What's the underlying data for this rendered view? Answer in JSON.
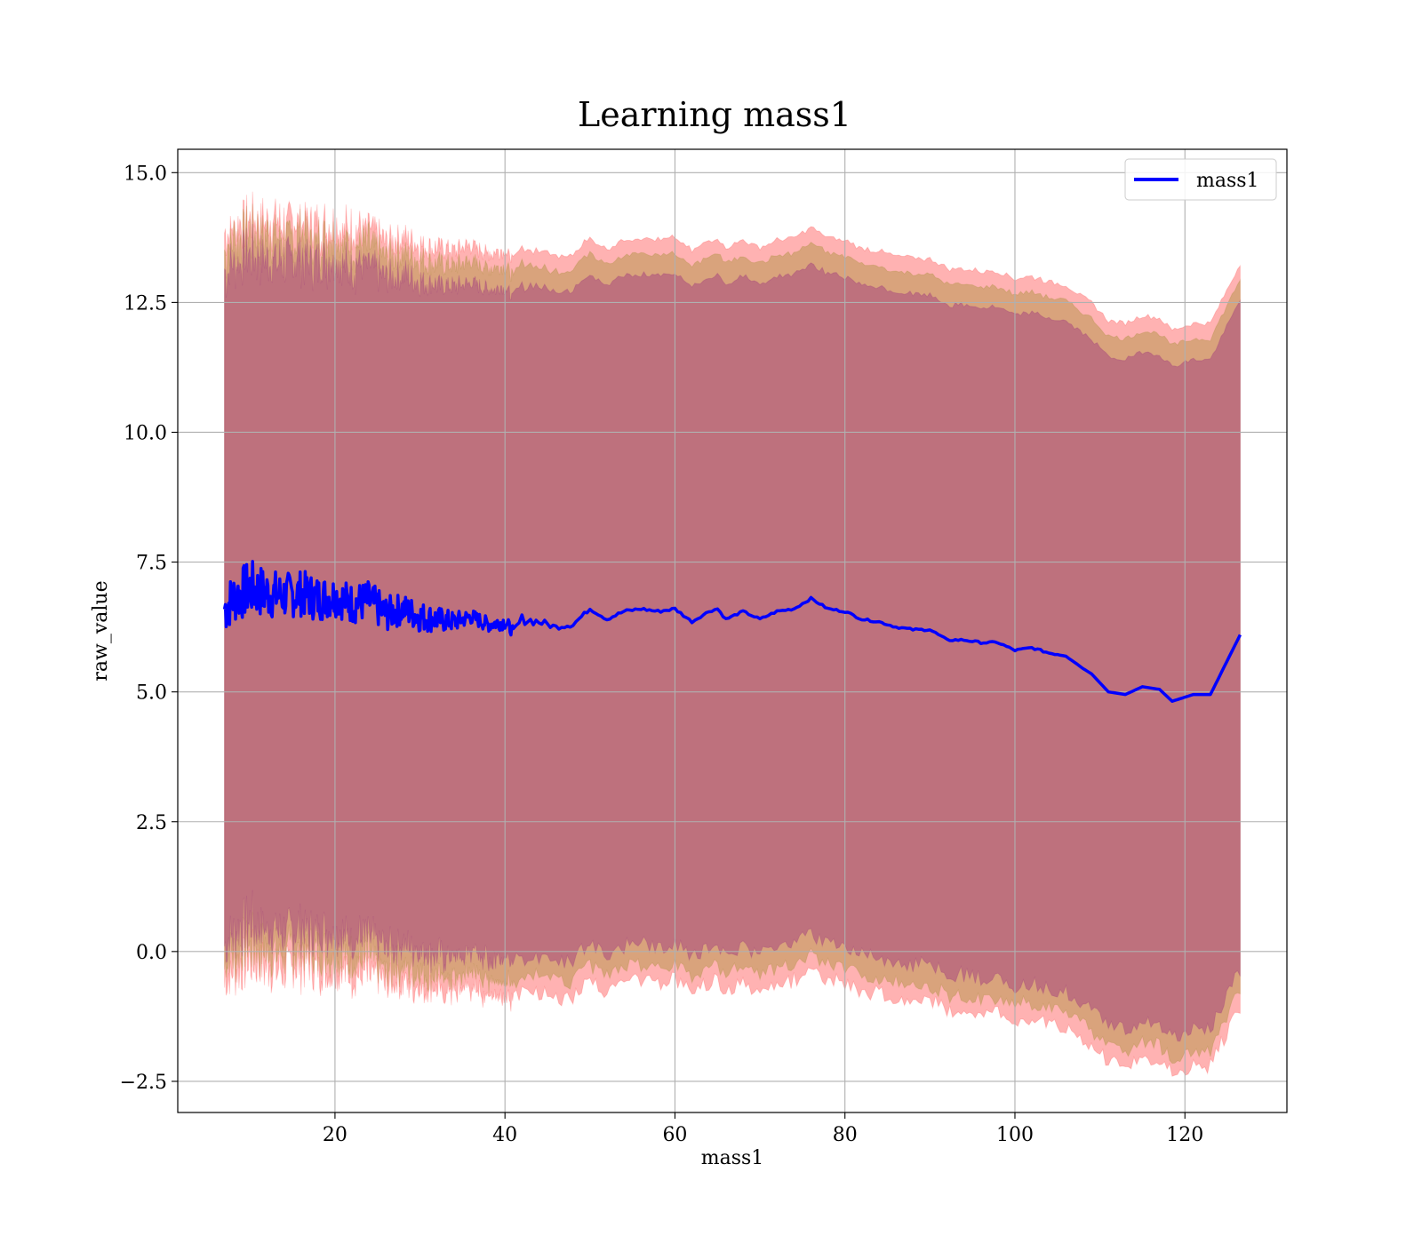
{
  "chart_data": {
    "type": "line",
    "title": "Learning mass1",
    "xlabel": "mass1",
    "ylabel": "raw_value",
    "xlim": [
      1.5,
      132
    ],
    "ylim": [
      -3.1,
      15.45
    ],
    "grid": true,
    "legend_position": "top-right",
    "x_ticks": [
      20,
      40,
      60,
      80,
      100,
      120
    ],
    "x_tick_labels": [
      "20",
      "40",
      "60",
      "80",
      "100",
      "120"
    ],
    "y_ticks": [
      15.0,
      12.5,
      10.0,
      7.5,
      5.0,
      2.5,
      0.0,
      -2.5
    ],
    "y_tick_labels": [
      "15.0",
      "12.5",
      "10.0",
      "7.5",
      "5.0",
      "2.5",
      "0.0",
      "−2.5"
    ],
    "series": [
      {
        "name": "mass1",
        "color": "#0000ff",
        "x": [
          7,
          8,
          10,
          12,
          14,
          16,
          18,
          20,
          22,
          24,
          26,
          28,
          30,
          32,
          34,
          36,
          38,
          40,
          41,
          42,
          44,
          46,
          48,
          50,
          52,
          54,
          56,
          58,
          60,
          62,
          64,
          65,
          66,
          68,
          70,
          72,
          74,
          76,
          78,
          80,
          82,
          84,
          86,
          88,
          90,
          92,
          94,
          96,
          98,
          100,
          102,
          104,
          106,
          108,
          109,
          111,
          113,
          115,
          117,
          118.5,
          121,
          123,
          126.5
        ],
        "y": [
          6.6,
          6.8,
          7.0,
          6.9,
          6.85,
          6.9,
          6.8,
          6.85,
          6.7,
          6.75,
          6.5,
          6.6,
          6.45,
          6.4,
          6.35,
          6.45,
          6.3,
          6.35,
          6.15,
          6.4,
          6.35,
          6.25,
          6.3,
          6.6,
          6.4,
          6.55,
          6.6,
          6.55,
          6.6,
          6.35,
          6.55,
          6.6,
          6.4,
          6.55,
          6.4,
          6.55,
          6.6,
          6.8,
          6.6,
          6.55,
          6.4,
          6.35,
          6.25,
          6.2,
          6.2,
          6.0,
          6.0,
          5.95,
          5.95,
          5.8,
          5.85,
          5.75,
          5.7,
          5.45,
          5.35,
          5.0,
          4.95,
          5.1,
          5.05,
          4.82,
          4.95,
          4.95,
          6.1
        ],
        "noise_amplitude": [
          0.5,
          0.5,
          0.55,
          0.5,
          0.45,
          0.45,
          0.45,
          0.4,
          0.4,
          0.4,
          0.35,
          0.3,
          0.3,
          0.25,
          0.2,
          0.15,
          0.15,
          0.15,
          0.1,
          0.1,
          0.08,
          0.05,
          0.05,
          0.03,
          0.03,
          0.03,
          0.03,
          0.03,
          0.03,
          0.02,
          0.02,
          0.02,
          0.02,
          0.02,
          0.02,
          0.02,
          0.02,
          0.02,
          0.02,
          0.02,
          0.02,
          0.02,
          0.02,
          0.02,
          0.02,
          0.02,
          0.02,
          0.02,
          0.02,
          0.02,
          0.02,
          0.02,
          0.02,
          0.0,
          0.0,
          0.0,
          0.0,
          0.0,
          0.0,
          0.0,
          0.0,
          0.0,
          0.0
        ]
      }
    ],
    "bands": [
      {
        "name_hint": "outer",
        "color": "#ff0000",
        "opacity": 0.3,
        "upper_offset": 7.15,
        "lower_offset": 7.15
      },
      {
        "name_hint": "middle",
        "color": "#808000",
        "opacity": 0.3,
        "upper_offset": 6.85,
        "lower_offset": 6.85
      },
      {
        "name_hint": "inner",
        "color": "#800080",
        "opacity": 0.3,
        "upper_offset": 6.45,
        "lower_offset": 6.45
      }
    ]
  }
}
